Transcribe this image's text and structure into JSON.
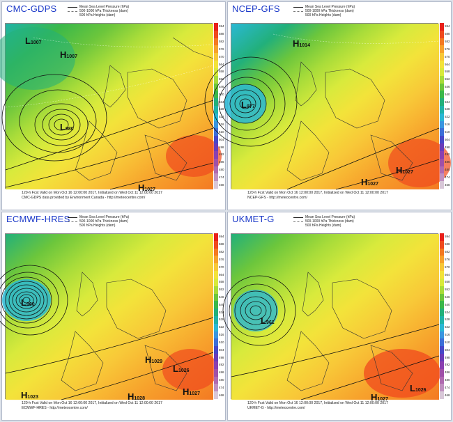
{
  "panels": [
    {
      "title": "CMC-GDPS",
      "legend": [
        "Mean Sea Level Pressure (hPa)",
        "500-1000 hPa Thickness (dam)",
        "500 hPa Heights (dam)"
      ],
      "footer": [
        "120-h Fcst Valid on Mon Oct 16 12:00:00 2017, Initialized on Wed Oct 11 12:00:00 2017",
        "CMC-GDPS data provided by Environment Canada - http://meteocentre.com/"
      ],
      "systems": [
        {
          "type": "L",
          "value": "1007"
        },
        {
          "type": "H",
          "value": "1007"
        },
        {
          "type": "L",
          "value": "980"
        },
        {
          "type": "H",
          "value": "1027"
        }
      ]
    },
    {
      "title": "NCEP-GFS",
      "legend": [
        "Mean Sea Level Pressure (hPa)",
        "500-1000 hPa Thickness (dam)",
        "500 hPa Heights (dam)"
      ],
      "footer": [
        "120-h Fcst Valid on Mon Oct 16 12:00:00 2017, Initialized on Wed Oct 11 12:00:00 2017",
        "NCEP-GFS - http://meteocentre.com/"
      ],
      "systems": [
        {
          "type": "H",
          "value": "1014"
        },
        {
          "type": "L",
          "value": "977"
        },
        {
          "type": "H",
          "value": "1027"
        },
        {
          "type": "H",
          "value": "1027"
        }
      ]
    },
    {
      "title": "ECMWF-HRES",
      "legend": [
        "Mean Sea Level Pressure (hPa)",
        "500-1000 hPa Thickness (dam)",
        "500 hPa Heights (dam)"
      ],
      "footer": [
        "120-h Fcst Valid on Mon Oct 16 12:00:00 2017, Initialized on Wed Oct 11 12:00:00 2017",
        "ECMWF-HRES - http://meteocentre.com/"
      ],
      "systems": [
        {
          "type": "L",
          "value": "960"
        },
        {
          "type": "H",
          "value": "1029"
        },
        {
          "type": "L",
          "value": "1026"
        },
        {
          "type": "H",
          "value": "1023"
        },
        {
          "type": "H",
          "value": "1028"
        },
        {
          "type": "H",
          "value": "1027"
        }
      ]
    },
    {
      "title": "UKMET-G",
      "legend": [
        "Mean Sea Level Pressure (hPa)",
        "500-1000 hPa Thickness (dam)",
        "500 hPa Heights (dam)"
      ],
      "footer": [
        "120-h Fcst Valid on Mon Oct 16 12:00:00 2017, Initialized on Wed Oct 11 12:00:00 2017",
        "UKMET-G - http://meteocentre.com/"
      ],
      "systems": [
        {
          "type": "L",
          "value": "961"
        },
        {
          "type": "H",
          "value": "1027"
        },
        {
          "type": "L",
          "value": "1026"
        }
      ]
    }
  ],
  "colorbar": [
    {
      "label": "594",
      "color": "#e8201a"
    },
    {
      "label": "588",
      "color": "#f04a1e"
    },
    {
      "label": "582",
      "color": "#f47a22"
    },
    {
      "label": "576",
      "color": "#f7a22c"
    },
    {
      "label": "570",
      "color": "#f8c838"
    },
    {
      "label": "564",
      "color": "#f3e33a"
    },
    {
      "label": "558",
      "color": "#d8ea3c"
    },
    {
      "label": "552",
      "color": "#a8dc3a"
    },
    {
      "label": "546",
      "color": "#6cc63c"
    },
    {
      "label": "540",
      "color": "#3ab84a"
    },
    {
      "label": "534",
      "color": "#22b07a"
    },
    {
      "label": "528",
      "color": "#1fb3a8"
    },
    {
      "label": "522",
      "color": "#2ab8d4"
    },
    {
      "label": "516",
      "color": "#3a96e0"
    },
    {
      "label": "510",
      "color": "#3d6fd8"
    },
    {
      "label": "504",
      "color": "#4848c8"
    },
    {
      "label": "498",
      "color": "#6a3cb8"
    },
    {
      "label": "492",
      "color": "#8a40b0"
    },
    {
      "label": "486",
      "color": "#a050a8"
    },
    {
      "label": "480",
      "color": "#b06ab0"
    },
    {
      "label": "474",
      "color": "#c090c0"
    },
    {
      "label": "468",
      "color": "#d8c8d8"
    }
  ]
}
